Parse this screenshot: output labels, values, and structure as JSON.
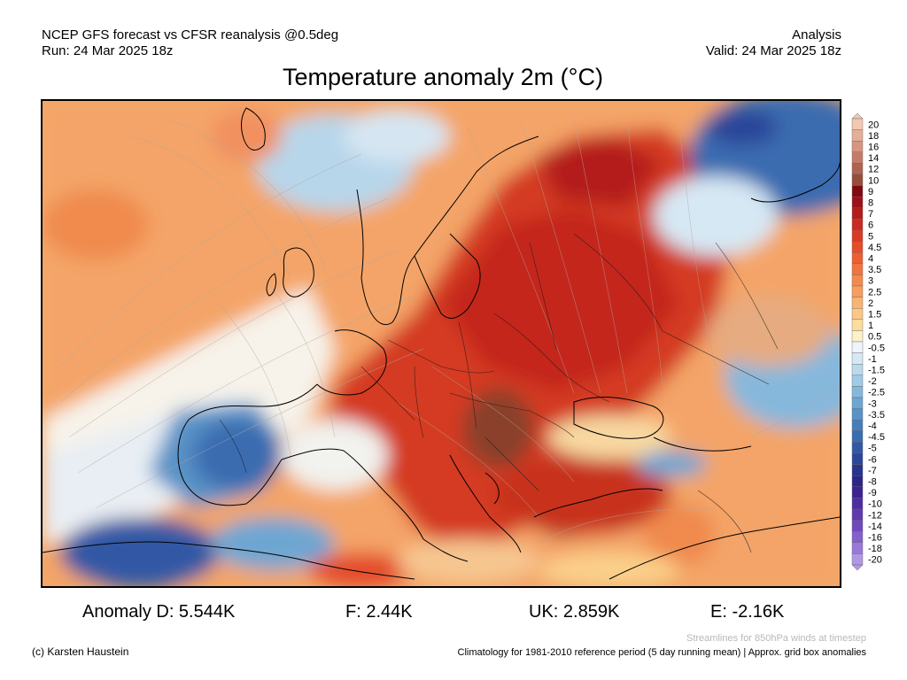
{
  "header": {
    "line1_left": "NCEP GFS forecast vs CFSR reanalysis @0.5deg",
    "line2_left": "Run: 24 Mar 2025 18z",
    "line1_right": "Analysis",
    "line2_right": "Valid: 24 Mar 2025 18z"
  },
  "title": "Temperature anomaly 2m (°C)",
  "colorbar": {
    "labels": [
      "20",
      "18",
      "16",
      "14",
      "12",
      "10",
      "9",
      "8",
      "7",
      "6",
      "5",
      "4.5",
      "4",
      "3.5",
      "3",
      "2.5",
      "2",
      "1.5",
      "1",
      "0.5",
      "-0.5",
      "-1",
      "-1.5",
      "-2",
      "-2.5",
      "-3",
      "-3.5",
      "-4",
      "-4.5",
      "-5",
      "-6",
      "-7",
      "-8",
      "-9",
      "-10",
      "-12",
      "-14",
      "-16",
      "-18",
      "-20"
    ],
    "colors": [
      "#f2c8b4",
      "#e6ad98",
      "#d69580",
      "#c47c68",
      "#ad6450",
      "#964d3c",
      "#800a14",
      "#9c1018",
      "#b41c1c",
      "#c82a22",
      "#d83a26",
      "#e44c2a",
      "#ec5f32",
      "#f07440",
      "#f4894e",
      "#f69e5e",
      "#f8b472",
      "#fac886",
      "#fcdd9c",
      "#fdf1c8",
      "#eef4fa",
      "#d6e8f4",
      "#bcdaee",
      "#a0cae6",
      "#86b8dc",
      "#6ea6d2",
      "#5892c6",
      "#467ebb",
      "#3a6cb0",
      "#3158a5",
      "#2a4599",
      "#28348c",
      "#2c2585",
      "#3a2291",
      "#4c2ca0",
      "#5e3aae",
      "#7048bc",
      "#8560cc",
      "#9a78d8",
      "#b098e4"
    ]
  },
  "stats": {
    "anomaly_d": "Anomaly D: 5.544K",
    "anomaly_f": "F: 2.44K",
    "anomaly_uk": "UK: 2.859K",
    "anomaly_e": "E: -2.16K"
  },
  "footer": {
    "credit": "(c) Karsten Haustein",
    "streamlines_note": "Streamlines for 850hPa winds at timestep",
    "climatology_note": "Climatology for 1981-2010 reference period (5 day running mean) | Approx. grid box anomalies"
  }
}
